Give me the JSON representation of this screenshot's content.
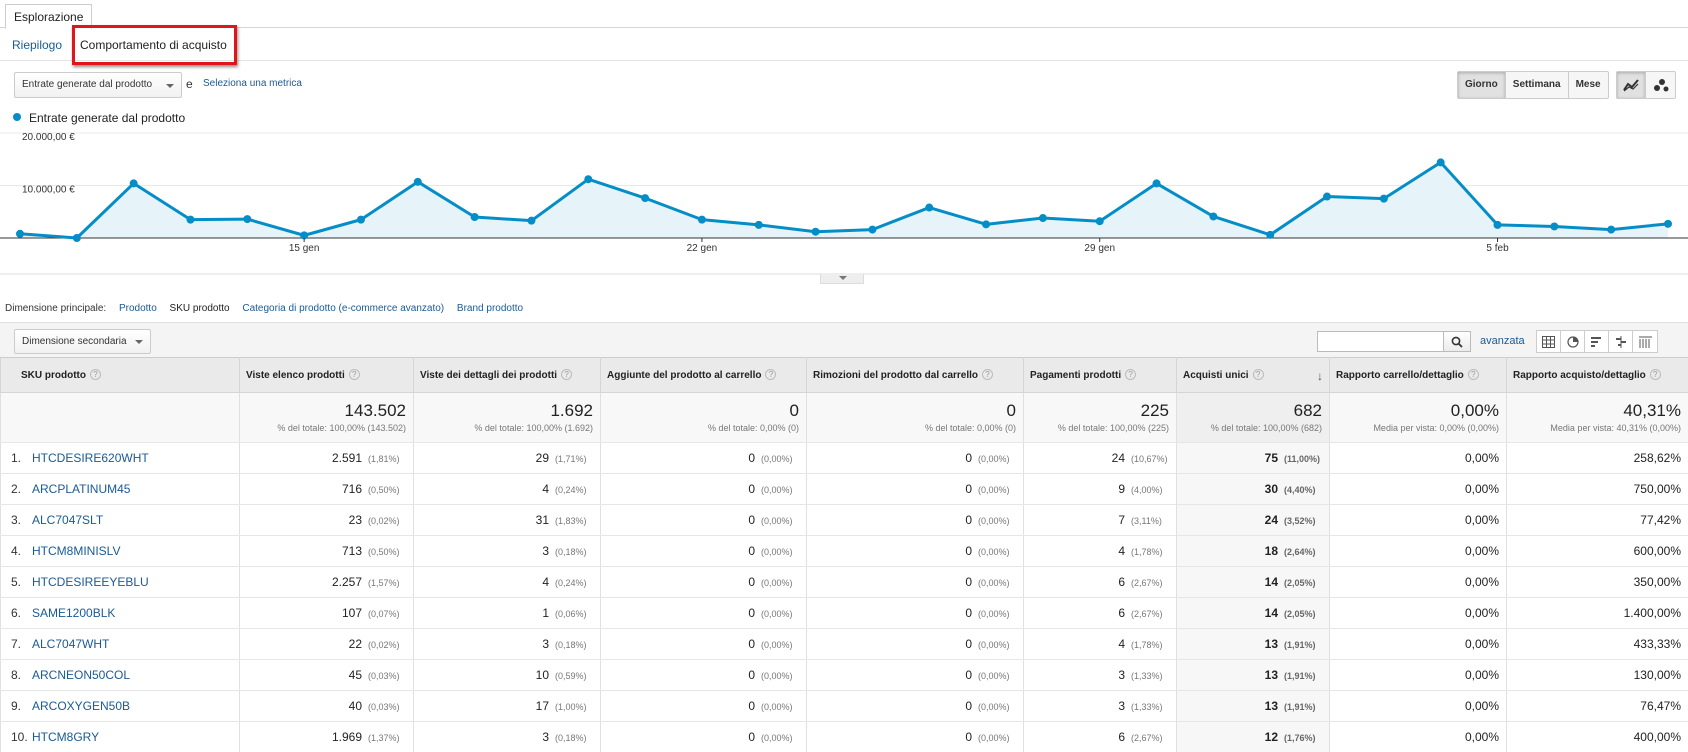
{
  "tabs": {
    "explore": "Esplorazione"
  },
  "subnav": {
    "summary": "Riepilogo",
    "shopping_behavior": "Comportamento di acquisto"
  },
  "metric_selector": {
    "primary": "Entrate generate dal prodotto",
    "and": "e",
    "select_metric": "Seleziona una metrica"
  },
  "period": {
    "day": "Giorno",
    "week": "Settimana",
    "month": "Mese"
  },
  "chart_data": {
    "type": "area",
    "series": [
      {
        "name": "Entrate generate dal prodotto",
        "values": [
          800,
          0,
          10400,
          3500,
          3600,
          500,
          3500,
          10700,
          4000,
          3300,
          11200,
          7600,
          3500,
          2500,
          1200,
          1600,
          5800,
          2600,
          3800,
          3200,
          10400,
          4100,
          600,
          7900,
          7500,
          14400,
          2500,
          2200,
          1600,
          2700
        ]
      }
    ],
    "y_ticks": [
      "20.000,00 €",
      "10.000,00 €"
    ],
    "ylim": [
      0,
      20000
    ],
    "x_ticks": [
      {
        "label": "15 gen",
        "index": 5
      },
      {
        "label": "22 gen",
        "index": 12
      },
      {
        "label": "29 gen",
        "index": 19
      },
      {
        "label": "5 feb",
        "index": 26
      }
    ],
    "color": "#058dc7",
    "fill": "#e6f3f9",
    "grid": true
  },
  "primary_dimension": {
    "label": "Dimensione principale:",
    "options": [
      "Prodotto",
      "SKU prodotto",
      "Categoria di prodotto (e-commerce avanzato)",
      "Brand prodotto"
    ],
    "selected": "SKU prodotto"
  },
  "toolbar": {
    "secondary_dimension": "Dimensione secondaria",
    "advanced": "avanzata",
    "search_value": ""
  },
  "table": {
    "columns": [
      "SKU prodotto",
      "Viste elenco prodotti",
      "Viste dei dettagli dei prodotti",
      "Aggiunte del prodotto al carrello",
      "Rimozioni del prodotto dal carrello",
      "Pagamenti prodotti",
      "Acquisti unici",
      "Rapporto carrello/dettaglio",
      "Rapporto acquisto/dettaglio"
    ],
    "totals": [
      {
        "value": "143.502",
        "sub": "% del totale: 100,00% (143.502)"
      },
      {
        "value": "1.692",
        "sub": "% del totale: 100,00% (1.692)"
      },
      {
        "value": "0",
        "sub": "% del totale: 0,00% (0)"
      },
      {
        "value": "0",
        "sub": "% del totale: 0,00% (0)"
      },
      {
        "value": "225",
        "sub": "% del totale: 100,00% (225)"
      },
      {
        "value": "682",
        "sub": "% del totale: 100,00% (682)"
      },
      {
        "value": "0,00%",
        "sub": "Media per vista: 0,00% (0,00%)"
      },
      {
        "value": "40,31%",
        "sub": "Media per vista: 40,31% (0,00%)"
      }
    ],
    "rows": [
      {
        "n": "1.",
        "sku": "HTCDESIRE620WHT",
        "lv": "2.591",
        "lvp": "(1,81%)",
        "dv": "29",
        "dvp": "(1,71%)",
        "add": "0",
        "addp": "(0,00%)",
        "rem": "0",
        "remp": "(0,00%)",
        "pay": "24",
        "payp": "(10,67%)",
        "uniq": "75",
        "uniqp": "(11,00%)",
        "cart": "0,00%",
        "buy": "258,62%"
      },
      {
        "n": "2.",
        "sku": "ARCPLATINUM45",
        "lv": "716",
        "lvp": "(0,50%)",
        "dv": "4",
        "dvp": "(0,24%)",
        "add": "0",
        "addp": "(0,00%)",
        "rem": "0",
        "remp": "(0,00%)",
        "pay": "9",
        "payp": "(4,00%)",
        "uniq": "30",
        "uniqp": "(4,40%)",
        "cart": "0,00%",
        "buy": "750,00%"
      },
      {
        "n": "3.",
        "sku": "ALC7047SLT",
        "lv": "23",
        "lvp": "(0,02%)",
        "dv": "31",
        "dvp": "(1,83%)",
        "add": "0",
        "addp": "(0,00%)",
        "rem": "0",
        "remp": "(0,00%)",
        "pay": "7",
        "payp": "(3,11%)",
        "uniq": "24",
        "uniqp": "(3,52%)",
        "cart": "0,00%",
        "buy": "77,42%"
      },
      {
        "n": "4.",
        "sku": "HTCM8MINISLV",
        "lv": "713",
        "lvp": "(0,50%)",
        "dv": "3",
        "dvp": "(0,18%)",
        "add": "0",
        "addp": "(0,00%)",
        "rem": "0",
        "remp": "(0,00%)",
        "pay": "4",
        "payp": "(1,78%)",
        "uniq": "18",
        "uniqp": "(2,64%)",
        "cart": "0,00%",
        "buy": "600,00%"
      },
      {
        "n": "5.",
        "sku": "HTCDESIREEYEBLU",
        "lv": "2.257",
        "lvp": "(1,57%)",
        "dv": "4",
        "dvp": "(0,24%)",
        "add": "0",
        "addp": "(0,00%)",
        "rem": "0",
        "remp": "(0,00%)",
        "pay": "6",
        "payp": "(2,67%)",
        "uniq": "14",
        "uniqp": "(2,05%)",
        "cart": "0,00%",
        "buy": "350,00%"
      },
      {
        "n": "6.",
        "sku": "SAME1200BLK",
        "lv": "107",
        "lvp": "(0,07%)",
        "dv": "1",
        "dvp": "(0,06%)",
        "add": "0",
        "addp": "(0,00%)",
        "rem": "0",
        "remp": "(0,00%)",
        "pay": "6",
        "payp": "(2,67%)",
        "uniq": "14",
        "uniqp": "(2,05%)",
        "cart": "0,00%",
        "buy": "1.400,00%"
      },
      {
        "n": "7.",
        "sku": "ALC7047WHT",
        "lv": "22",
        "lvp": "(0,02%)",
        "dv": "3",
        "dvp": "(0,18%)",
        "add": "0",
        "addp": "(0,00%)",
        "rem": "0",
        "remp": "(0,00%)",
        "pay": "4",
        "payp": "(1,78%)",
        "uniq": "13",
        "uniqp": "(1,91%)",
        "cart": "0,00%",
        "buy": "433,33%"
      },
      {
        "n": "8.",
        "sku": "ARCNEON50COL",
        "lv": "45",
        "lvp": "(0,03%)",
        "dv": "10",
        "dvp": "(0,59%)",
        "add": "0",
        "addp": "(0,00%)",
        "rem": "0",
        "remp": "(0,00%)",
        "pay": "3",
        "payp": "(1,33%)",
        "uniq": "13",
        "uniqp": "(1,91%)",
        "cart": "0,00%",
        "buy": "130,00%"
      },
      {
        "n": "9.",
        "sku": "ARCOXYGEN50B",
        "lv": "40",
        "lvp": "(0,03%)",
        "dv": "17",
        "dvp": "(1,00%)",
        "add": "0",
        "addp": "(0,00%)",
        "rem": "0",
        "remp": "(0,00%)",
        "pay": "3",
        "payp": "(1,33%)",
        "uniq": "13",
        "uniqp": "(1,91%)",
        "cart": "0,00%",
        "buy": "76,47%"
      },
      {
        "n": "10.",
        "sku": "HTCM8GRY",
        "lv": "1.969",
        "lvp": "(1,37%)",
        "dv": "3",
        "dvp": "(0,18%)",
        "add": "0",
        "addp": "(0,00%)",
        "rem": "0",
        "remp": "(0,00%)",
        "pay": "6",
        "payp": "(2,67%)",
        "uniq": "12",
        "uniqp": "(1,76%)",
        "cart": "0,00%",
        "buy": "400,00%"
      }
    ]
  }
}
